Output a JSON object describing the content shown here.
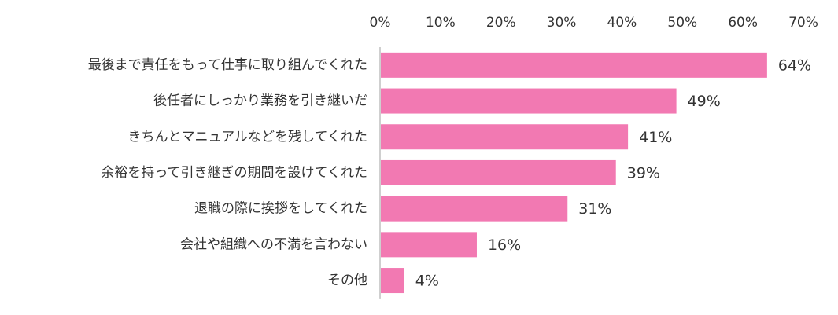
{
  "chart_data": {
    "type": "bar",
    "orientation": "horizontal",
    "categories": [
      "最後まで責任をもって仕事に取り組んでくれた",
      "後任者にしっかり業務を引き継いだ",
      "きちんとマニュアルなどを残してくれた",
      "余裕を持って引き継ぎの期間を設けてくれた",
      "退職の際に挨拶をしてくれた",
      "会社や組織への不満を言わない",
      "その他"
    ],
    "values": [
      64,
      49,
      41,
      39,
      31,
      16,
      4
    ],
    "value_labels": [
      "64%",
      "49%",
      "41%",
      "39%",
      "31%",
      "16%",
      "4%"
    ],
    "xlim": [
      0,
      70
    ],
    "x_ticks": [
      0,
      10,
      20,
      30,
      40,
      50,
      60,
      70
    ],
    "x_tick_labels": [
      "0%",
      "10%",
      "20%",
      "30%",
      "40%",
      "50%",
      "60%",
      "70%"
    ],
    "axis_position": "top",
    "grid": false,
    "legend": "none",
    "bar_color": "#f279b2",
    "axis_color": "#bfbfbf"
  }
}
